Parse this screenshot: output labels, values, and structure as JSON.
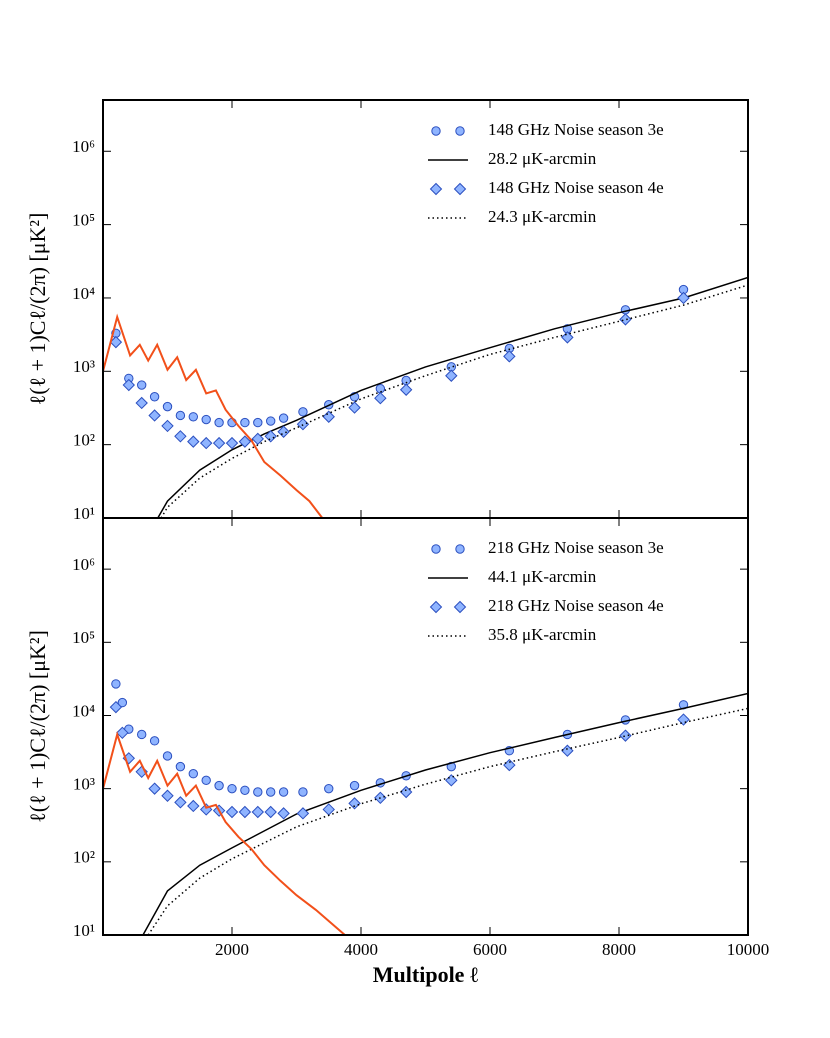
{
  "chart_data": [
    {
      "type": "line",
      "log_y": true,
      "ylabel": "ℓ(ℓ + 1)Cℓ/(2π) [μK²]",
      "xlim": [
        0,
        10000
      ],
      "ylim": [
        10,
        5000000
      ],
      "xticks": [
        2000,
        4000,
        6000,
        8000,
        10000
      ],
      "yticks": [
        {
          "value": 10,
          "label": "10¹"
        },
        {
          "value": 100,
          "label": "10²"
        },
        {
          "value": 1000,
          "label": "10³"
        },
        {
          "value": 10000,
          "label": "10⁴"
        },
        {
          "value": 100000,
          "label": "10⁵"
        },
        {
          "value": 1000000,
          "label": "10⁶"
        }
      ],
      "legend": "upper right",
      "series": [
        {
          "name": "148 GHz Noise season 3e",
          "marker": "circle",
          "color": "#8fb4ff",
          "x": [
            200,
            400,
            600,
            800,
            1000,
            1200,
            1400,
            1600,
            1800,
            2000,
            2200,
            2400,
            2600,
            2800,
            3100,
            3500,
            3900,
            4300,
            4700,
            5400,
            6300,
            7200,
            8100,
            9000
          ],
          "values": [
            3300,
            800,
            650,
            450,
            330,
            250,
            240,
            220,
            200,
            200,
            200,
            200,
            210,
            230,
            280,
            350,
            450,
            580,
            750,
            1150,
            2050,
            3800,
            6900,
            13000
          ]
        },
        {
          "name": "28.2 μK-arcmin",
          "line": "solid",
          "color": "#000000",
          "x": [
            850,
            1000,
            1500,
            2000,
            2500,
            3000,
            4000,
            5000,
            6000,
            7000,
            8000,
            9000,
            10000
          ],
          "values": [
            10,
            17,
            45,
            85,
            140,
            215,
            550,
            1150,
            2100,
            3800,
            6300,
            10000,
            19000
          ]
        },
        {
          "name": "148 GHz Noise season 4e",
          "marker": "diamond",
          "color": "#8fb4ff",
          "x": [
            200,
            400,
            600,
            800,
            1000,
            1200,
            1400,
            1600,
            1800,
            2000,
            2200,
            2400,
            2600,
            2800,
            3100,
            3500,
            3900,
            4300,
            4700,
            5400,
            6300,
            7200,
            8100,
            9000
          ],
          "values": [
            2500,
            650,
            370,
            250,
            180,
            130,
            110,
            105,
            105,
            105,
            110,
            120,
            130,
            150,
            190,
            240,
            320,
            430,
            560,
            870,
            1600,
            2900,
            5100,
            10000
          ]
        },
        {
          "name": "24.3 μK-arcmin",
          "line": "dotted",
          "color": "#000000",
          "x": [
            900,
            1000,
            1500,
            2000,
            2500,
            3000,
            4000,
            5000,
            6000,
            7000,
            8000,
            9000,
            10000
          ],
          "values": [
            10,
            14,
            35,
            65,
            110,
            170,
            420,
            870,
            1700,
            2900,
            4800,
            8000,
            15000
          ]
        },
        {
          "line": "solid",
          "color": "#f2501a",
          "x": [
            0,
            220,
            420,
            570,
            700,
            840,
            1000,
            1150,
            1290,
            1440,
            1600,
            1750,
            1900,
            2100,
            2300,
            2500,
            2750,
            3000,
            3200,
            3400
          ],
          "values": [
            1000,
            5500,
            1650,
            2300,
            1400,
            2300,
            1050,
            1550,
            760,
            1050,
            500,
            550,
            300,
            180,
            115,
            58,
            38,
            24,
            17,
            10
          ]
        }
      ]
    },
    {
      "type": "line",
      "log_y": true,
      "ylabel": "ℓ(ℓ + 1)Cℓ/(2π) [μK²]",
      "xlabel": "Multipole ℓ",
      "xlim": [
        0,
        10000
      ],
      "ylim": [
        10,
        5000000
      ],
      "xticks": [
        2000,
        4000,
        6000,
        8000,
        10000
      ],
      "yticks": [
        {
          "value": 10,
          "label": "10¹"
        },
        {
          "value": 100,
          "label": "10²"
        },
        {
          "value": 1000,
          "label": "10³"
        },
        {
          "value": 10000,
          "label": "10⁴"
        },
        {
          "value": 100000,
          "label": "10⁵"
        },
        {
          "value": 1000000,
          "label": "10⁶"
        }
      ],
      "legend": "upper right",
      "series": [
        {
          "name": "218 GHz Noise season 3e",
          "marker": "circle",
          "color": "#8fb4ff",
          "x": [
            200,
            300,
            400,
            600,
            800,
            1000,
            1200,
            1400,
            1600,
            1800,
            2000,
            2200,
            2400,
            2600,
            2800,
            3100,
            3500,
            3900,
            4300,
            4700,
            5400,
            6300,
            7200,
            8100,
            9000
          ],
          "values": [
            27000,
            15000,
            6500,
            5500,
            4500,
            2800,
            2000,
            1600,
            1300,
            1100,
            1000,
            950,
            900,
            900,
            900,
            900,
            1000,
            1100,
            1200,
            1500,
            2000,
            3300,
            5500,
            8700,
            14000
          ]
        },
        {
          "name": "44.1 μK-arcmin",
          "line": "solid",
          "color": "#000000",
          "x": [
            620,
            1000,
            1500,
            2000,
            3000,
            4000,
            5000,
            6000,
            7000,
            8000,
            9000,
            10000
          ],
          "values": [
            10,
            40,
            90,
            155,
            450,
            950,
            1800,
            3100,
            5000,
            8000,
            12500,
            20000
          ]
        },
        {
          "name": "218 GHz Noise season 4e",
          "marker": "diamond",
          "color": "#8fb4ff",
          "x": [
            200,
            300,
            400,
            600,
            800,
            1000,
            1200,
            1400,
            1600,
            1800,
            2000,
            2200,
            2400,
            2600,
            2800,
            3100,
            3500,
            3900,
            4300,
            4700,
            5400,
            6300,
            7200,
            8100,
            9000
          ],
          "values": [
            13000,
            5800,
            2600,
            1700,
            1000,
            800,
            650,
            580,
            520,
            500,
            480,
            480,
            480,
            480,
            460,
            460,
            520,
            630,
            750,
            900,
            1300,
            2100,
            3300,
            5300,
            8800
          ]
        },
        {
          "name": "35.8 μK-arcmin",
          "line": "dotted",
          "color": "#000000",
          "x": [
            700,
            1000,
            1500,
            2000,
            3000,
            4000,
            5000,
            6000,
            7000,
            8000,
            9000,
            10000
          ],
          "values": [
            10,
            25,
            60,
            110,
            300,
            620,
            1150,
            2000,
            3200,
            5000,
            8000,
            12500
          ]
        },
        {
          "line": "solid",
          "color": "#f2501a",
          "x": [
            0,
            220,
            420,
            570,
            700,
            840,
            1000,
            1150,
            1290,
            1440,
            1600,
            1750,
            1900,
            2100,
            2300,
            2500,
            2750,
            3000,
            3300,
            3750
          ],
          "values": [
            1000,
            5500,
            1700,
            2400,
            1400,
            2400,
            1100,
            1600,
            800,
            1100,
            550,
            600,
            350,
            220,
            150,
            90,
            55,
            35,
            22,
            10
          ]
        }
      ]
    }
  ]
}
